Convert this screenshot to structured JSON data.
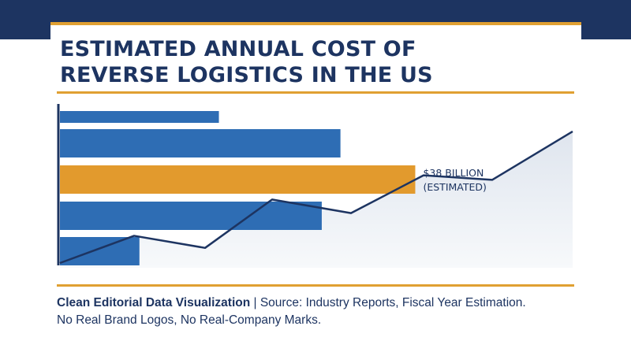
{
  "title": "ESTIMATED ANNUAL COST OF\nREVERSE LOGISTICS IN THE US",
  "footer": {
    "lead": "Clean Editorial Data Visualization",
    "separator": " | ",
    "source": "Source: Industry Reports, Fiscal Year Estimation.",
    "line2": "No Real Brand Logos, No Real-Company Marks."
  },
  "colors": {
    "navy": "#1d3461",
    "gold": "#e0a032",
    "bar_blue": "#2e6db4",
    "highlight": "#e29a2d",
    "area_fill": "#e6ebf2"
  },
  "chart_data": {
    "type": "bar",
    "orientation": "horizontal",
    "bars": [
      {
        "value": 17,
        "highlight": false
      },
      {
        "value": 30,
        "highlight": false
      },
      {
        "value": 38,
        "highlight": true,
        "label_line1": "$38 BILLION",
        "label_line2": "(ESTIMATED)"
      },
      {
        "value": 28,
        "highlight": false
      },
      {
        "value": 8.5,
        "highlight": false
      }
    ],
    "xlim": [
      0,
      55
    ],
    "trend_line": {
      "type": "line",
      "ylim": [
        0,
        100
      ],
      "values": [
        0,
        18,
        10,
        42,
        33,
        58,
        55,
        87
      ]
    },
    "grid": false
  }
}
